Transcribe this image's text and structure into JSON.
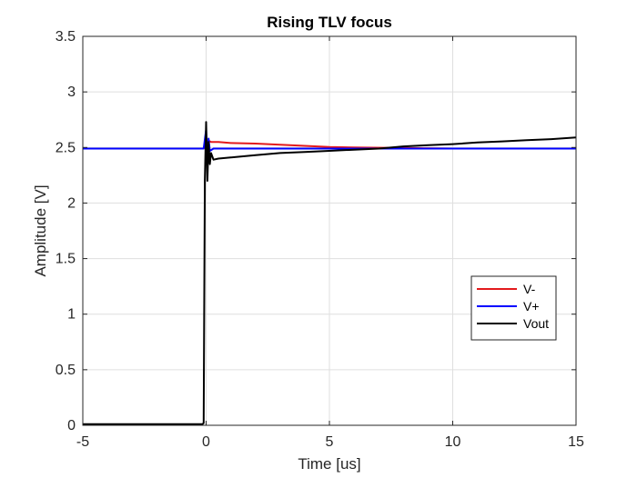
{
  "chart_data": {
    "type": "line",
    "title": "Rising TLV focus",
    "xlabel": "Time [us]",
    "ylabel": "Amplitude [V]",
    "xlim": [
      -5,
      15
    ],
    "ylim": [
      0,
      3.5
    ],
    "xticks": [
      -5,
      0,
      5,
      10,
      15
    ],
    "yticks": [
      0,
      0.5,
      1,
      1.5,
      2,
      2.5,
      3,
      3.5
    ],
    "grid": true,
    "legend_position": "right",
    "series": [
      {
        "name": "V-",
        "color": "#e31a1c",
        "x": [
          -5,
          -2.5,
          -0.1,
          0,
          0.05,
          0.1,
          0.2,
          0.5,
          1,
          2,
          3,
          4,
          5,
          6,
          8,
          10,
          12,
          15
        ],
        "y": [
          2.49,
          2.49,
          2.49,
          2.58,
          2.45,
          2.56,
          2.55,
          2.55,
          2.54,
          2.535,
          2.525,
          2.515,
          2.505,
          2.5,
          2.495,
          2.49,
          2.49,
          2.49
        ]
      },
      {
        "name": "V+",
        "color": "#0000ff",
        "x": [
          -5,
          -2.5,
          -0.1,
          0,
          0.05,
          0.1,
          0.15,
          0.3,
          1,
          3,
          5,
          8,
          10,
          12,
          15
        ],
        "y": [
          2.49,
          2.49,
          2.49,
          2.66,
          2.35,
          2.58,
          2.47,
          2.49,
          2.49,
          2.49,
          2.49,
          2.49,
          2.49,
          2.49,
          2.49
        ]
      },
      {
        "name": "Vout",
        "color": "#000000",
        "x": [
          -5,
          -2.5,
          -0.15,
          -0.1,
          -0.05,
          0,
          0.05,
          0.1,
          0.15,
          0.2,
          0.3,
          0.5,
          1,
          2,
          3,
          4,
          5,
          6,
          7,
          8,
          9,
          10,
          11,
          12,
          13,
          14,
          15
        ],
        "y": [
          0.01,
          0.01,
          0.01,
          0.02,
          2.2,
          2.73,
          2.2,
          2.55,
          2.35,
          2.45,
          2.39,
          2.4,
          2.41,
          2.43,
          2.45,
          2.46,
          2.47,
          2.48,
          2.49,
          2.51,
          2.52,
          2.53,
          2.545,
          2.555,
          2.565,
          2.575,
          2.59
        ]
      }
    ]
  }
}
